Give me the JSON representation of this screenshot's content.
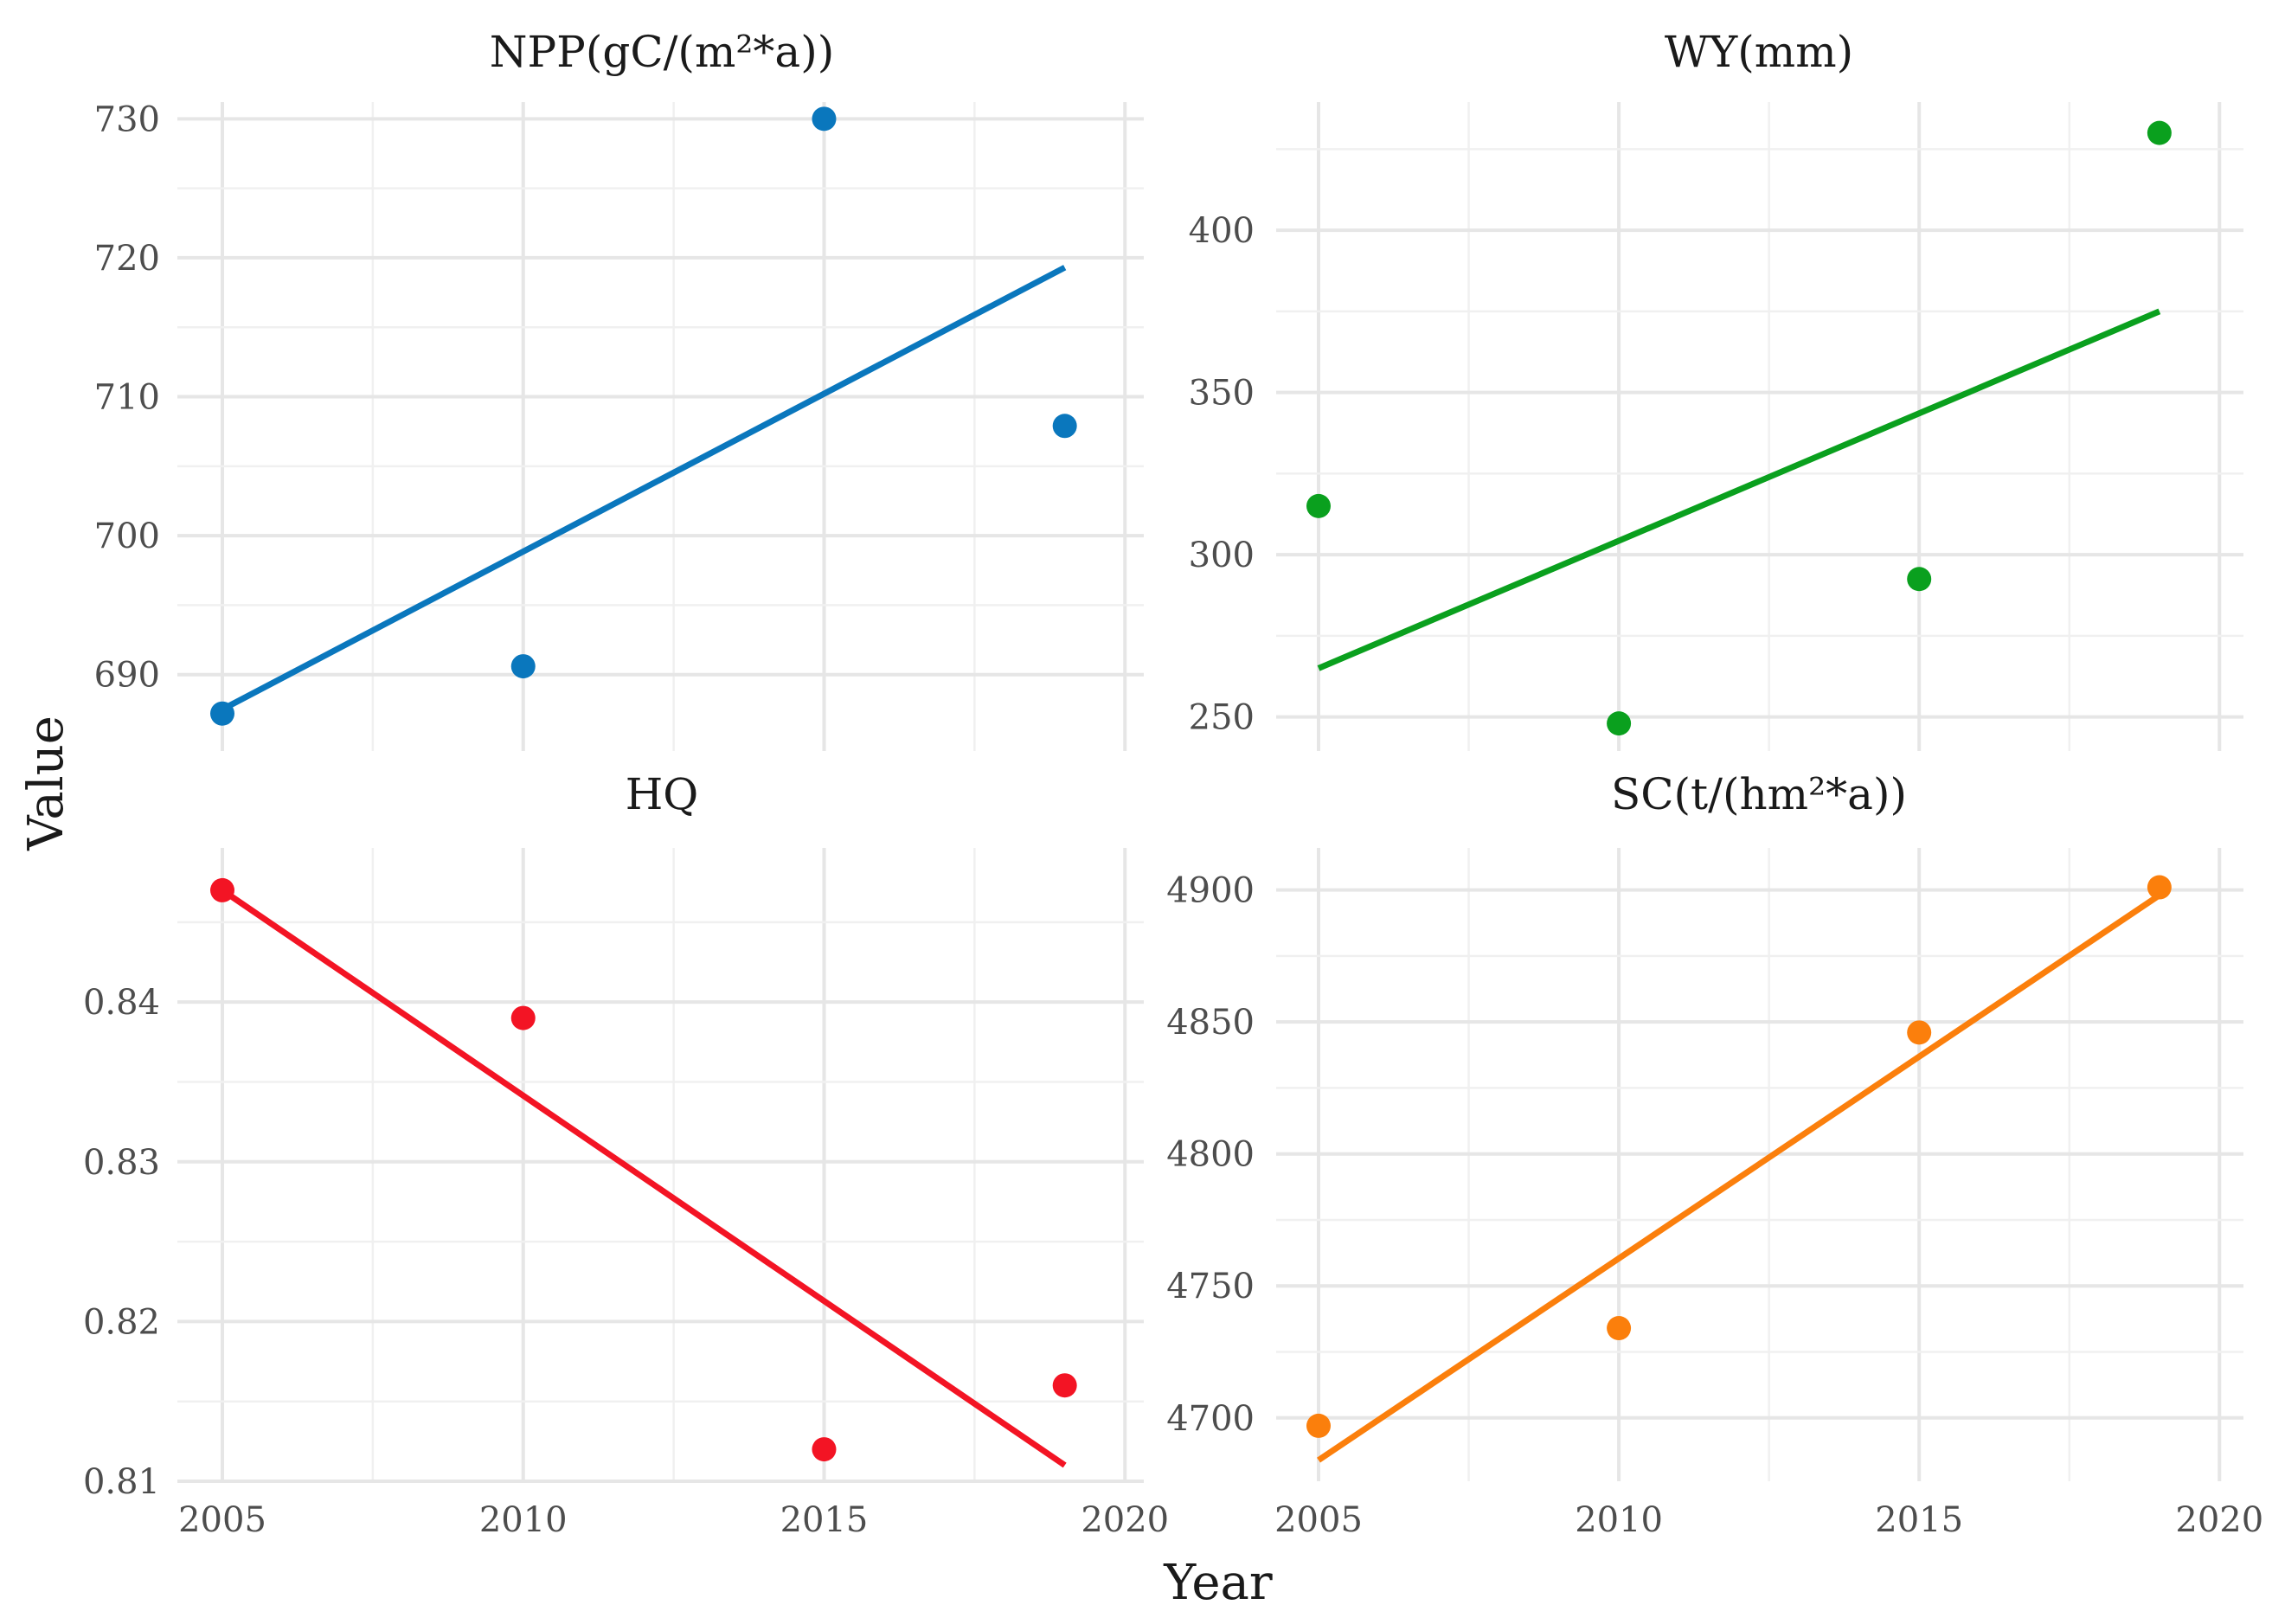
{
  "figure": {
    "xlabel": "Year",
    "ylabel": "Value"
  },
  "chart_data": [
    {
      "type": "scatter",
      "title": "NPP(gC/(m²*a))",
      "color": "#0a77bd",
      "x": [
        2005,
        2010,
        2015,
        2019
      ],
      "y": [
        687.2,
        690.6,
        730.0,
        707.9
      ],
      "fit": {
        "x": [
          2005,
          2019
        ],
        "y": [
          687.5,
          719.3
        ]
      },
      "xlim": [
        2005,
        2020.5
      ],
      "ylim": [
        685.5,
        732.2
      ],
      "xticks": [],
      "yticks": [
        690,
        700,
        710,
        720,
        730
      ],
      "xlabel": "",
      "ylabel": "Value"
    },
    {
      "type": "scatter",
      "title": "WY(mm)",
      "color": "#0aa01e",
      "x": [
        2005,
        2010,
        2015,
        2019
      ],
      "y": [
        315,
        248,
        292.5,
        430
      ],
      "fit": {
        "x": [
          2005,
          2019
        ],
        "y": [
          265,
          375
        ]
      },
      "xlim": [
        2005,
        2020.5
      ],
      "ylim": [
        239.5,
        439.5
      ],
      "xticks": [],
      "yticks": [
        250,
        300,
        350,
        400
      ],
      "xlabel": "",
      "ylabel": ""
    },
    {
      "type": "scatter",
      "title": "HQ",
      "color": "#f31424",
      "x": [
        2005,
        2010,
        2015,
        2019
      ],
      "y": [
        0.847,
        0.839,
        0.812,
        0.816
      ],
      "fit": {
        "x": [
          2005,
          2019
        ],
        "y": [
          0.847,
          0.811
        ]
      },
      "xlim": [
        2005,
        2020.5
      ],
      "ylim": [
        0.81,
        0.849
      ],
      "xticks": [
        2005,
        2010,
        2015,
        2020
      ],
      "yticks": [
        0.81,
        0.82,
        0.83,
        0.84
      ],
      "ytick_labels": [
        "0.81",
        "0.82",
        "0.83",
        "0.84"
      ],
      "xlabel": "Year",
      "ylabel": "Value"
    },
    {
      "type": "scatter",
      "title": "SC(t/(hm²*a))",
      "color": "#fb7f0c",
      "x": [
        2005,
        2010,
        2015,
        2019
      ],
      "y": [
        4697,
        4734,
        4846,
        4901
      ],
      "fit": {
        "x": [
          2005,
          2019
        ],
        "y": [
          4684,
          4898
        ]
      },
      "xlim": [
        2005,
        2020.5
      ],
      "ylim": [
        4676,
        4912
      ],
      "xticks": [
        2005,
        2010,
        2015,
        2020
      ],
      "yticks": [
        4700,
        4750,
        4800,
        4850,
        4900
      ],
      "xlabel": "Year",
      "ylabel": ""
    }
  ]
}
